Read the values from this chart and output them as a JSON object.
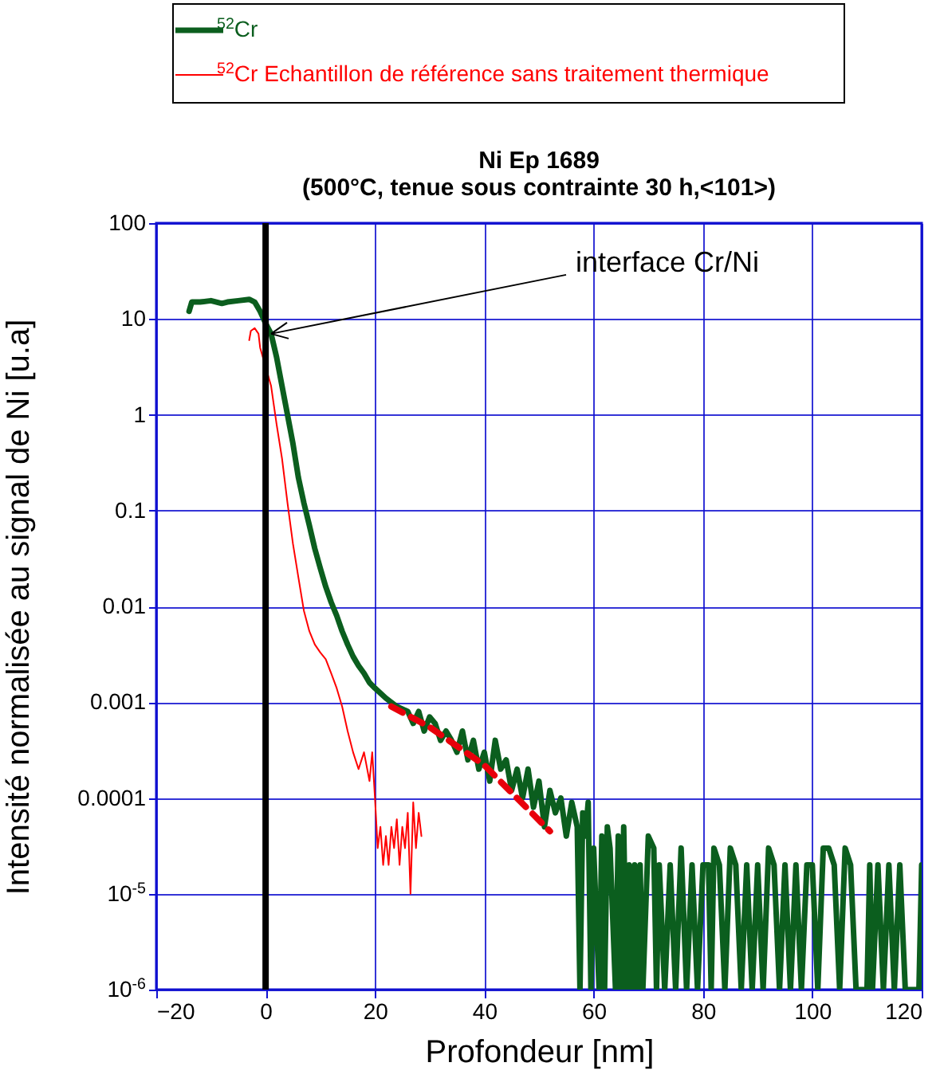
{
  "chart_data": {
    "type": "line",
    "title": "Ni Ep 1689\n(500°C,  tenue sous contrainte 30 h,<101>)",
    "xlabel": "Profondeur  [nm]",
    "ylabel": "Intensité normalisée au signal de Ni [u.a]",
    "log": "y",
    "grid": true,
    "legend": "top",
    "xlim": [
      -20,
      120
    ],
    "xticks": [
      -20,
      0,
      20,
      40,
      60,
      80,
      100,
      120
    ],
    "ylim": [
      1e-06,
      100
    ],
    "yticks": [
      {
        "value": 1e-06,
        "label": "10$^{-6}$"
      },
      {
        "value": 1e-05,
        "label": "10$^{-5}$"
      },
      0.0001,
      0.001,
      0.01,
      0.1,
      1,
      10,
      100
    ],
    "ref_lines": [
      {
        "axis": "x",
        "value": 0,
        "color": "#000000"
      }
    ],
    "annotations": [
      {
        "text": "interface Cr/Ni",
        "x": 1,
        "y": 7
      }
    ],
    "series": [
      {
        "name": "$^{52}$Cr",
        "color": "#0b5e1e",
        "line_style": "solid",
        "x": [
          -14,
          -13.5,
          -12,
          -10,
          -8,
          -7,
          -5,
          -3,
          -2,
          -1,
          0,
          1,
          2,
          3,
          4,
          5,
          6,
          7,
          8,
          9,
          10,
          11,
          12,
          13,
          14,
          15,
          16,
          17,
          18,
          19,
          20,
          22,
          24,
          26,
          27,
          28,
          29,
          30,
          31,
          32,
          33,
          34,
          35,
          36,
          37,
          38,
          39,
          40,
          41,
          42,
          43,
          44,
          45,
          46,
          47,
          48,
          49,
          50,
          51,
          52,
          53,
          54,
          55,
          56,
          57,
          57.5,
          58,
          58.5,
          59,
          59.5,
          60,
          61,
          61.5,
          62,
          62.5,
          63,
          64,
          64.5,
          65,
          65.5,
          66,
          66.5,
          67,
          67.5,
          68,
          68.5,
          69,
          70,
          71,
          71.5,
          72,
          73,
          74,
          75,
          76,
          77,
          78,
          79,
          80,
          81,
          81.5,
          82,
          83,
          84,
          85,
          86,
          87,
          88,
          89,
          90,
          91,
          92,
          93,
          94,
          95,
          96,
          97,
          98,
          99,
          100,
          101,
          102,
          103,
          104,
          105,
          106,
          107,
          108,
          110,
          110.5,
          111,
          112,
          113,
          114,
          115,
          116,
          117,
          119.5,
          120
        ],
        "values": [
          12,
          15,
          15,
          15.5,
          14.5,
          15,
          15.5,
          16,
          15,
          12,
          9,
          7,
          4,
          2,
          1,
          0.5,
          0.22,
          0.12,
          0.07,
          0.04,
          0.025,
          0.016,
          0.011,
          0.008,
          0.0055,
          0.004,
          0.003,
          0.0024,
          0.002,
          0.0016,
          0.0014,
          0.0011,
          0.0009,
          0.0008,
          0.0006,
          0.0008,
          0.0005,
          0.0007,
          0.0006,
          0.0004,
          0.0005,
          0.0004,
          0.0003,
          0.0005,
          0.00025,
          0.0004,
          0.0002,
          0.0003,
          0.00015,
          0.0004,
          0.0002,
          0.00025,
          0.00012,
          0.0002,
          0.0001,
          0.0002,
          8e-05,
          0.00015,
          5e-05,
          0.00012,
          7e-05,
          0.0001,
          4e-05,
          9e-05,
          5e-05,
          1e-06,
          7e-05,
          4e-05,
          9e-05,
          1e-06,
          3e-05,
          1e-06,
          4e-05,
          1e-06,
          5e-05,
          3e-05,
          1e-06,
          4e-05,
          1e-06,
          5e-05,
          1e-06,
          2e-05,
          1e-06,
          2e-05,
          1e-06,
          2e-05,
          1e-06,
          4e-05,
          3e-05,
          1e-06,
          2e-05,
          1e-06,
          2e-05,
          1e-06,
          3e-05,
          1e-06,
          2e-05,
          1e-06,
          2e-05,
          2e-05,
          1e-06,
          3e-05,
          2e-05,
          1e-06,
          3e-05,
          2e-05,
          1e-06,
          2e-05,
          1e-06,
          2e-05,
          1e-06,
          3e-05,
          2e-05,
          1e-06,
          2e-05,
          1e-06,
          2e-05,
          1e-06,
          2e-05,
          2e-05,
          1e-06,
          3e-05,
          3e-05,
          2e-05,
          1e-06,
          3e-05,
          2e-05,
          1e-06,
          1e-06,
          2e-05,
          1e-06,
          2e-05,
          1e-06,
          2e-05,
          1e-06,
          2e-05,
          1e-06,
          1e-06,
          2e-05
        ]
      },
      {
        "name": "$^{52}$Cr Echantillon de référence sans traitement thermique",
        "color": "#ff0000",
        "line_style": "solid",
        "x": [
          -3,
          -2.7,
          -2,
          -1.3,
          -1,
          0,
          1,
          2,
          3,
          4,
          5,
          6,
          7,
          8,
          9,
          10,
          11,
          12,
          13,
          14,
          15,
          16,
          17,
          18,
          19,
          19.5,
          20,
          20.5,
          21,
          21.5,
          22,
          22.5,
          23,
          23.5,
          24,
          24.5,
          25,
          25.5,
          26,
          26.5,
          27,
          27.5,
          28,
          28.5
        ],
        "values": [
          6,
          7.5,
          8,
          7,
          5,
          null,
          2,
          0.8,
          0.35,
          0.12,
          0.045,
          0.02,
          0.009,
          0.0055,
          0.004,
          0.0033,
          0.0028,
          0.002,
          0.0014,
          0.0009,
          0.0005,
          0.0003,
          0.0002,
          0.0003,
          0.00015,
          0.0003,
          0.0001,
          3e-05,
          5e-05,
          2e-05,
          4e-05,
          2e-05,
          5e-05,
          3e-05,
          6e-05,
          2e-05,
          5e-05,
          3e-05,
          7e-05,
          1e-05,
          9e-05,
          3e-05,
          7e-05,
          4e-05
        ]
      },
      {
        "type": "line",
        "color": "#e8000b",
        "line_style": "dashed",
        "x": [
          23,
          30,
          40,
          52
        ],
        "values": [
          0.0009,
          0.00055,
          0.00022,
          4.5e-05
        ]
      }
    ]
  }
}
